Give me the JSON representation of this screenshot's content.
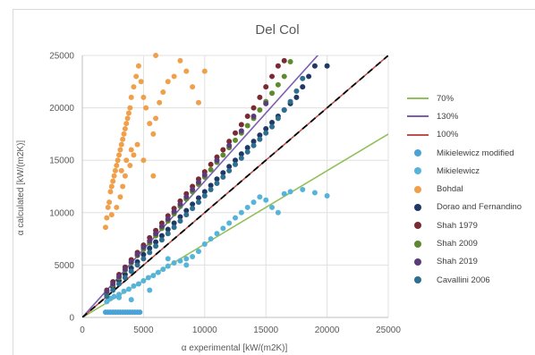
{
  "chart_data": {
    "type": "scatter",
    "title": "Del Col",
    "xlabel": "α experimental [kW/(m2K)]",
    "ylabel": "α calculated [kW/(m2K)]",
    "xlim": [
      0,
      25000
    ],
    "ylim": [
      0,
      25000
    ],
    "x_ticks": [
      "0",
      "5000",
      "10000",
      "15000",
      "20000",
      "25000"
    ],
    "y_ticks": [
      "0",
      "5000",
      "10000",
      "15000",
      "20000",
      "25000"
    ],
    "grid": true,
    "legend_position": "right",
    "lines": [
      {
        "name": "70%",
        "slope": 0.7,
        "color": "#92c05a",
        "dash": false
      },
      {
        "name": "130%",
        "slope": 1.3,
        "color": "#7d5fb2",
        "dash": false
      },
      {
        "name": "100%",
        "slope": 1.0,
        "color": "#c0504d",
        "dash": false
      }
    ],
    "reference_line": {
      "slope": 1.0,
      "color": "#000000",
      "dash": true
    },
    "series": [
      {
        "name": "Mikielewicz modified",
        "color": "#4aa3d6",
        "points": [
          [
            1900,
            500
          ],
          [
            2100,
            500
          ],
          [
            2300,
            500
          ],
          [
            2500,
            500
          ],
          [
            2700,
            500
          ],
          [
            2900,
            500
          ],
          [
            3100,
            500
          ],
          [
            3300,
            500
          ],
          [
            3500,
            500
          ],
          [
            3700,
            500
          ],
          [
            3900,
            500
          ],
          [
            4100,
            500
          ],
          [
            4300,
            500
          ],
          [
            4500,
            500
          ],
          [
            4700,
            500
          ]
        ]
      },
      {
        "name": "Mikielewicz",
        "color": "#56b3d9",
        "points": [
          [
            2000,
            1500
          ],
          [
            2300,
            1800
          ],
          [
            2600,
            2000
          ],
          [
            3000,
            2200
          ],
          [
            3400,
            2500
          ],
          [
            3800,
            2700
          ],
          [
            4200,
            3000
          ],
          [
            4600,
            3200
          ],
          [
            5000,
            3500
          ],
          [
            5400,
            3800
          ],
          [
            5800,
            4000
          ],
          [
            6200,
            4300
          ],
          [
            6600,
            4600
          ],
          [
            7000,
            4900
          ],
          [
            7500,
            5200
          ],
          [
            8000,
            5400
          ],
          [
            8500,
            5600
          ],
          [
            9000,
            5800
          ],
          [
            9500,
            6300
          ],
          [
            10000,
            7000
          ],
          [
            10500,
            7500
          ],
          [
            11000,
            8000
          ],
          [
            11500,
            8500
          ],
          [
            12000,
            9000
          ],
          [
            12500,
            9500
          ],
          [
            13000,
            10000
          ],
          [
            13500,
            10500
          ],
          [
            14000,
            11000
          ],
          [
            14500,
            11500
          ],
          [
            15000,
            11200
          ],
          [
            15500,
            10500
          ],
          [
            16000,
            10000
          ],
          [
            16500,
            11800
          ],
          [
            17000,
            12000
          ],
          [
            18000,
            12200
          ],
          [
            19000,
            11900
          ],
          [
            20000,
            11600
          ],
          [
            3000,
            1900
          ],
          [
            4000,
            1700
          ],
          [
            5500,
            2600
          ],
          [
            7000,
            5600
          ],
          [
            8500,
            5000
          ]
        ]
      },
      {
        "name": "Bohdal",
        "color": "#f0a04b",
        "points": [
          [
            1900,
            8600
          ],
          [
            2000,
            9500
          ],
          [
            2100,
            10500
          ],
          [
            2200,
            11000
          ],
          [
            2300,
            12000
          ],
          [
            2400,
            12500
          ],
          [
            2500,
            13000
          ],
          [
            2600,
            13500
          ],
          [
            2700,
            14000
          ],
          [
            2800,
            14500
          ],
          [
            2900,
            15000
          ],
          [
            3000,
            15500
          ],
          [
            3100,
            16000
          ],
          [
            3200,
            16500
          ],
          [
            3300,
            17000
          ],
          [
            3400,
            17500
          ],
          [
            3500,
            18000
          ],
          [
            3600,
            18500
          ],
          [
            3700,
            19000
          ],
          [
            3800,
            19500
          ],
          [
            3900,
            20000
          ],
          [
            4000,
            21000
          ],
          [
            4200,
            22000
          ],
          [
            4400,
            23000
          ],
          [
            4600,
            24000
          ],
          [
            4800,
            22500
          ],
          [
            5000,
            21000
          ],
          [
            5200,
            20000
          ],
          [
            5500,
            18500
          ],
          [
            5800,
            17500
          ],
          [
            6000,
            19000
          ],
          [
            6300,
            20500
          ],
          [
            6600,
            21500
          ],
          [
            7000,
            22500
          ],
          [
            7500,
            23000
          ],
          [
            8000,
            24500
          ],
          [
            8500,
            23500
          ],
          [
            9000,
            22000
          ],
          [
            9500,
            20500
          ],
          [
            10000,
            23500
          ],
          [
            3100,
            11500
          ],
          [
            3300,
            12500
          ],
          [
            3500,
            13500
          ],
          [
            3900,
            14500
          ],
          [
            4200,
            15500
          ],
          [
            4500,
            16500
          ],
          [
            2800,
            10500
          ],
          [
            4000,
            16000
          ],
          [
            5000,
            15000
          ],
          [
            6000,
            25000
          ],
          [
            3200,
            14000
          ],
          [
            3600,
            15000
          ],
          [
            5800,
            13500
          ],
          [
            2400,
            9800
          ]
        ]
      },
      {
        "name": "Dorao and Fernandino",
        "color": "#1f3864",
        "points": [
          [
            2000,
            2200
          ],
          [
            2500,
            2900
          ],
          [
            3000,
            3500
          ],
          [
            3500,
            4100
          ],
          [
            4000,
            4700
          ],
          [
            4500,
            5300
          ],
          [
            5000,
            6000
          ],
          [
            5500,
            6600
          ],
          [
            6000,
            7200
          ],
          [
            6500,
            7800
          ],
          [
            7000,
            8400
          ],
          [
            7500,
            9000
          ],
          [
            8000,
            9600
          ],
          [
            8500,
            10200
          ],
          [
            9000,
            10800
          ],
          [
            9500,
            11400
          ],
          [
            10000,
            12000
          ],
          [
            10500,
            12600
          ],
          [
            11000,
            13200
          ],
          [
            11500,
            13800
          ],
          [
            12000,
            14400
          ],
          [
            12500,
            15000
          ],
          [
            13000,
            15600
          ],
          [
            13500,
            16200
          ],
          [
            14000,
            16800
          ],
          [
            14500,
            17400
          ],
          [
            15000,
            18000
          ],
          [
            15500,
            18600
          ],
          [
            16000,
            19200
          ],
          [
            16500,
            19800
          ],
          [
            17000,
            20400
          ],
          [
            17500,
            21000
          ],
          [
            18000,
            22000
          ],
          [
            18500,
            23000
          ],
          [
            19000,
            24000
          ],
          [
            20000,
            24000
          ]
        ]
      },
      {
        "name": "Shah 1979",
        "color": "#7a2a33",
        "points": [
          [
            2000,
            2600
          ],
          [
            2500,
            3400
          ],
          [
            3000,
            4100
          ],
          [
            3500,
            4800
          ],
          [
            4000,
            5500
          ],
          [
            4500,
            6200
          ],
          [
            5000,
            6900
          ],
          [
            5500,
            7600
          ],
          [
            6000,
            8300
          ],
          [
            6500,
            9000
          ],
          [
            7000,
            9700
          ],
          [
            7500,
            10400
          ],
          [
            8000,
            11100
          ],
          [
            8500,
            11800
          ],
          [
            9000,
            12500
          ],
          [
            9500,
            13200
          ],
          [
            10000,
            13900
          ],
          [
            10500,
            14600
          ],
          [
            11000,
            15300
          ],
          [
            11500,
            16000
          ],
          [
            12000,
            16800
          ],
          [
            12500,
            17600
          ],
          [
            13000,
            18400
          ],
          [
            13500,
            19200
          ],
          [
            14000,
            20000
          ],
          [
            14500,
            21000
          ],
          [
            15000,
            22000
          ],
          [
            15500,
            23000
          ],
          [
            16000,
            24000
          ],
          [
            16500,
            24500
          ]
        ]
      },
      {
        "name": "Shah 2009",
        "color": "#5e8a2f",
        "points": [
          [
            2000,
            2400
          ],
          [
            2500,
            3100
          ],
          [
            3000,
            3800
          ],
          [
            3500,
            4500
          ],
          [
            4000,
            5200
          ],
          [
            4500,
            5900
          ],
          [
            5000,
            6500
          ],
          [
            5500,
            7100
          ],
          [
            6000,
            7800
          ],
          [
            6500,
            8500
          ],
          [
            7000,
            9200
          ],
          [
            7500,
            9900
          ],
          [
            8000,
            10600
          ],
          [
            8500,
            11300
          ],
          [
            9000,
            12000
          ],
          [
            9500,
            12700
          ],
          [
            10000,
            13400
          ],
          [
            10500,
            14100
          ],
          [
            11000,
            14800
          ],
          [
            11500,
            15500
          ],
          [
            12000,
            16200
          ],
          [
            12500,
            16900
          ],
          [
            13000,
            17600
          ],
          [
            13500,
            18300
          ],
          [
            14000,
            19000
          ],
          [
            14500,
            19800
          ],
          [
            15000,
            20600
          ],
          [
            15500,
            21400
          ],
          [
            16000,
            22200
          ],
          [
            16500,
            23000
          ],
          [
            17000,
            24400
          ]
        ]
      },
      {
        "name": "Shah 2019",
        "color": "#5b3a7a",
        "points": [
          [
            2000,
            2500
          ],
          [
            2500,
            3200
          ],
          [
            3000,
            3900
          ],
          [
            3500,
            4600
          ],
          [
            4000,
            5300
          ],
          [
            4500,
            6000
          ],
          [
            5000,
            6700
          ],
          [
            5500,
            7300
          ],
          [
            6000,
            8000
          ],
          [
            6500,
            8700
          ],
          [
            7000,
            9400
          ],
          [
            7500,
            10100
          ],
          [
            8000,
            10800
          ],
          [
            8500,
            11500
          ],
          [
            9000,
            12200
          ],
          [
            9500,
            12900
          ],
          [
            10000,
            13600
          ],
          [
            11000,
            15000
          ],
          [
            12000,
            16400
          ],
          [
            13000,
            17800
          ],
          [
            14000,
            19200
          ],
          [
            15000,
            20400
          ]
        ]
      },
      {
        "name": "Cavallini 2006",
        "color": "#2e6e8e",
        "points": [
          [
            2000,
            2000
          ],
          [
            2500,
            2600
          ],
          [
            3000,
            3200
          ],
          [
            3500,
            3800
          ],
          [
            4000,
            4400
          ],
          [
            4500,
            5000
          ],
          [
            5000,
            5600
          ],
          [
            5500,
            6200
          ],
          [
            6000,
            6800
          ],
          [
            6500,
            7400
          ],
          [
            7000,
            8000
          ],
          [
            7500,
            8600
          ],
          [
            8000,
            9200
          ],
          [
            8500,
            9800
          ],
          [
            9000,
            10400
          ],
          [
            9500,
            11000
          ],
          [
            10000,
            11600
          ],
          [
            10500,
            12200
          ],
          [
            11000,
            12800
          ],
          [
            11500,
            13400
          ],
          [
            12000,
            14000
          ],
          [
            12500,
            14600
          ],
          [
            13000,
            15200
          ],
          [
            13500,
            15800
          ],
          [
            14000,
            16400
          ],
          [
            14500,
            17000
          ],
          [
            15000,
            17600
          ],
          [
            15500,
            18200
          ],
          [
            16000,
            19000
          ],
          [
            16500,
            19800
          ],
          [
            17000,
            20600
          ],
          [
            17500,
            21600
          ],
          [
            18000,
            22800
          ]
        ]
      }
    ]
  }
}
